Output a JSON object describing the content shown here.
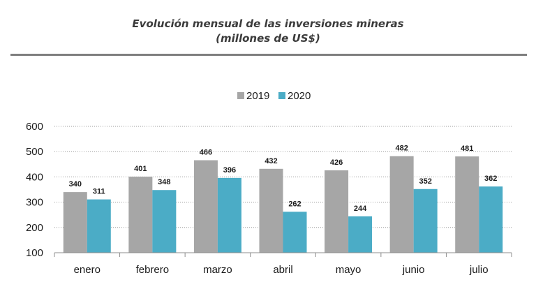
{
  "chart_data": {
    "type": "bar",
    "title": "Evolución mensual de las inversiones mineras",
    "subtitle": "(millones de US$)",
    "categories": [
      "enero",
      "febrero",
      "marzo",
      "abril",
      "mayo",
      "junio",
      "julio"
    ],
    "series": [
      {
        "name": "2019",
        "color": "#a6a6a6",
        "values": [
          340,
          401,
          466,
          432,
          426,
          482,
          481
        ]
      },
      {
        "name": "2020",
        "color": "#4bacc6",
        "values": [
          311,
          348,
          396,
          262,
          244,
          352,
          362
        ]
      }
    ],
    "ylim": [
      100,
      600
    ],
    "yticks": [
      100,
      200,
      300,
      400,
      500,
      600
    ],
    "grid": true,
    "legend": "top-center",
    "data_labels": true
  }
}
